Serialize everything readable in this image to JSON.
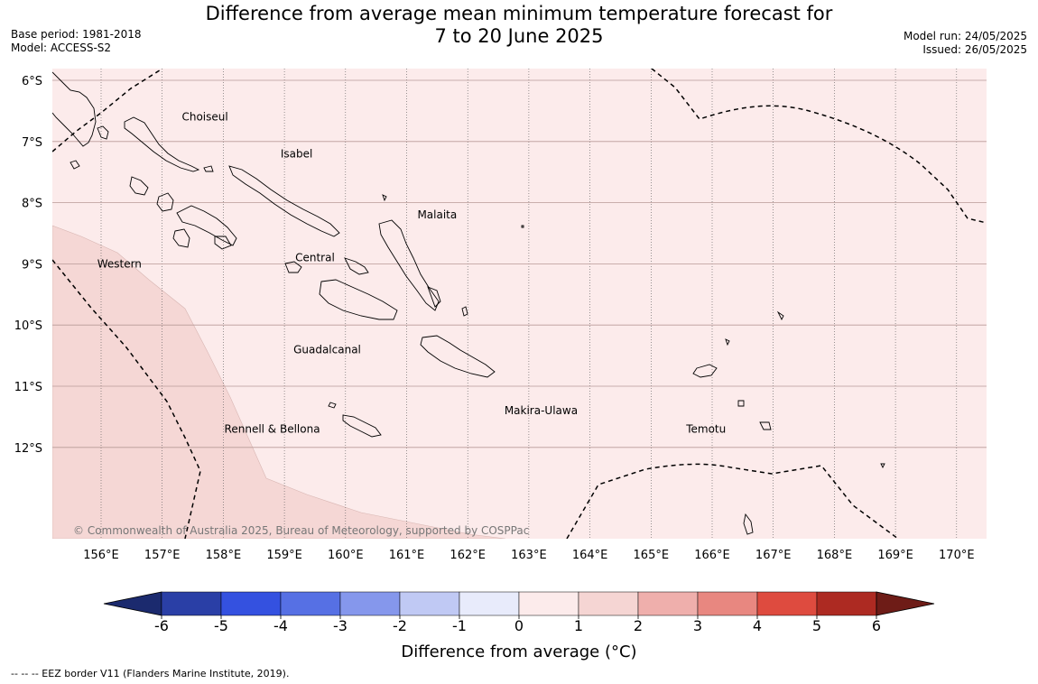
{
  "title_line1": "Difference from average mean minimum temperature forecast for",
  "title_line2": "7 to 20 June 2025",
  "base_period": "Base period: 1981-2018",
  "model": "Model: ACCESS-S2",
  "model_run": "Model run: 24/05/2025",
  "issued": "Issued: 26/05/2025",
  "lat_labels": [
    {
      "label": "6°S",
      "lat": 6
    },
    {
      "label": "7°S",
      "lat": 7
    },
    {
      "label": "8°S",
      "lat": 8
    },
    {
      "label": "9°S",
      "lat": 9
    },
    {
      "label": "10°S",
      "lat": 10
    },
    {
      "label": "11°S",
      "lat": 11
    },
    {
      "label": "12°S",
      "lat": 12
    }
  ],
  "lon_labels": [
    {
      "label": "156°E",
      "lon": 156
    },
    {
      "label": "157°E",
      "lon": 157
    },
    {
      "label": "158°E",
      "lon": 158
    },
    {
      "label": "159°E",
      "lon": 159
    },
    {
      "label": "160°E",
      "lon": 160
    },
    {
      "label": "161°E",
      "lon": 161
    },
    {
      "label": "162°E",
      "lon": 162
    },
    {
      "label": "163°E",
      "lon": 163
    },
    {
      "label": "164°E",
      "lon": 164
    },
    {
      "label": "165°E",
      "lon": 165
    },
    {
      "label": "166°E",
      "lon": 166
    },
    {
      "label": "167°E",
      "lon": 167
    },
    {
      "label": "168°E",
      "lon": 168
    },
    {
      "label": "169°E",
      "lon": 169
    },
    {
      "label": "170°E",
      "lon": 170
    }
  ],
  "regions": [
    {
      "name": "Choiseul",
      "lon": 157.7,
      "lat": 6.6
    },
    {
      "name": "Isabel",
      "lon": 159.2,
      "lat": 7.2
    },
    {
      "name": "Malaita",
      "lon": 161.5,
      "lat": 8.2
    },
    {
      "name": "Western",
      "lon": 156.3,
      "lat": 9.0
    },
    {
      "name": "Central",
      "lon": 159.5,
      "lat": 8.9
    },
    {
      "name": "Guadalcanal",
      "lon": 159.7,
      "lat": 10.4
    },
    {
      "name": "Makira-Ulawa",
      "lon": 163.2,
      "lat": 11.4
    },
    {
      "name": "Rennell & Bellona",
      "lon": 158.8,
      "lat": 11.7
    },
    {
      "name": "Temotu",
      "lon": 165.9,
      "lat": 11.7
    }
  ],
  "copyright": "© Commonwealth of Australia 2025, Bureau of Meteorology, supported by COSPPac",
  "colorbar": {
    "ticks": [
      "-6",
      "-5",
      "-4",
      "-3",
      "-2",
      "-1",
      "0",
      "1",
      "2",
      "3",
      "4",
      "5",
      "6"
    ],
    "colors": [
      "#1b2a6e",
      "#2a3fa6",
      "#3451e0",
      "#5670e4",
      "#8597ec",
      "#c0c9f4",
      "#e8ebfb",
      "#fcebeb",
      "#f5d5d3",
      "#efafac",
      "#e88780",
      "#de4b3f",
      "#ad2a22",
      "#6e1c17"
    ],
    "label": "Difference from average (°C)"
  },
  "field": {
    "main_color": "#fcebeb",
    "anomaly_1_2_color": "#f5d7d5"
  },
  "footnote": "--  --  -- EEZ border V11 (Flanders Marine Institute, 2019)."
}
